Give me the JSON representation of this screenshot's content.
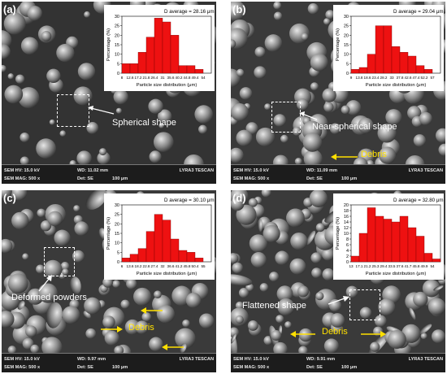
{
  "panels": [
    {
      "label": "(a)",
      "annotation": "Spherical shape",
      "debris": "",
      "bar": {
        "hv": "SEM HV: 15.0 kV",
        "wd": "WD: 11.02 mm",
        "brand": "LYRA3 TESCAN",
        "mag": "SEM MAG: 500 x",
        "det": "Det: SE",
        "scale": "100 μm"
      },
      "chart_data": {
        "type": "bar",
        "title": "D average = 28.16 μm",
        "xlabel": "Particle size distribution (μm)",
        "ylabel": "Percentage (%)",
        "ylim": [
          0,
          30
        ],
        "yticks": [
          0,
          5,
          10,
          15,
          20,
          25,
          30
        ],
        "categories": [
          "8",
          "12.6",
          "17.2",
          "21.8",
          "26.4",
          "31",
          "35.6",
          "40.2",
          "44.8",
          "49.4",
          "54"
        ],
        "values": [
          5,
          5,
          11,
          19,
          29,
          27,
          20,
          4,
          4,
          2,
          0
        ]
      }
    },
    {
      "label": "(b)",
      "annotation": "Near-spherical shape",
      "debris": "Debris",
      "bar": {
        "hv": "SEM HV: 15.0 kV",
        "wd": "WD: 11.09 mm",
        "brand": "LYRA3 TESCAN",
        "mag": "SEM MAG: 500 x",
        "det": "Det: SE",
        "scale": "100 μm"
      },
      "chart_data": {
        "type": "bar",
        "title": "D average = 29.04 μm",
        "xlabel": "Particle size distribution (μm)",
        "ylabel": "Percentage (%)",
        "ylim": [
          0,
          30
        ],
        "yticks": [
          0,
          5,
          10,
          15,
          20,
          25,
          30
        ],
        "categories": [
          "9",
          "13.8",
          "18.6",
          "23.4",
          "28.2",
          "33",
          "37.8",
          "42.6",
          "47.4",
          "52.2",
          "57"
        ],
        "values": [
          2,
          3,
          10,
          25,
          25,
          14,
          11,
          9,
          4,
          2,
          0
        ]
      }
    },
    {
      "label": "(c)",
      "annotation": "Deformed powders",
      "debris": "Debris",
      "bar": {
        "hv": "SEM HV: 15.0 kV",
        "wd": "WD: 9.97 mm",
        "brand": "LYRA3 TESCAN",
        "mag": "SEM MAG: 500 x",
        "det": "Det: SE",
        "scale": "100 μm"
      },
      "chart_data": {
        "type": "bar",
        "title": "D average = 30.10 μm",
        "xlabel": "Particle size distribution (μm)",
        "ylabel": "Percentage (%)",
        "ylim": [
          0,
          30
        ],
        "yticks": [
          0,
          5,
          10,
          15,
          20,
          25,
          30
        ],
        "categories": [
          "6",
          "13.6",
          "18.2",
          "22.8",
          "27.4",
          "32",
          "36.6",
          "41.2",
          "45.8",
          "50.4",
          "55"
        ],
        "values": [
          2,
          4,
          7,
          16,
          25,
          22,
          12,
          6,
          5,
          2,
          0
        ]
      }
    },
    {
      "label": "(d)",
      "annotation": "Flattened shape",
      "debris": "Debris",
      "bar": {
        "hv": "SEM HV: 15.0 kV",
        "wd": "WD: 9.91 mm",
        "brand": "LYRA3 TESCAN",
        "mag": "SEM MAG: 500 x",
        "det": "Det: SE",
        "scale": "100 μm"
      },
      "chart_data": {
        "type": "bar",
        "title": "D average = 32.80 μm",
        "xlabel": "Particle size distribution (μm)",
        "ylabel": "Percentage (%)",
        "ylim": [
          0,
          20
        ],
        "yticks": [
          0,
          2,
          4,
          6,
          8,
          10,
          12,
          14,
          16,
          18,
          20
        ],
        "categories": [
          "13",
          "17.1",
          "21.2",
          "25.3",
          "29.4",
          "33.5",
          "37.6",
          "41.7",
          "45.8",
          "49.9",
          "54"
        ],
        "values": [
          2,
          10,
          19,
          16,
          15,
          14,
          16,
          12,
          9,
          3,
          1
        ]
      }
    }
  ]
}
